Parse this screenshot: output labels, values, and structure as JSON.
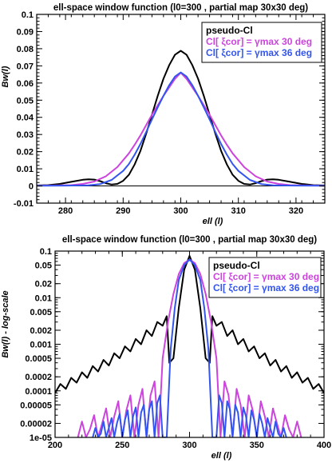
{
  "chart_data": [
    {
      "type": "line",
      "title": "ell-space window function (l0=300 , partial map 30x30 deg)",
      "xlabel": "ell  (l)",
      "ylabel": "Bw(l)",
      "xlim": [
        275,
        325
      ],
      "ylim": [
        -0.01,
        0.1
      ],
      "log_y": false,
      "grid": false,
      "legend_position": "top-right",
      "x_ticks": [
        {
          "v": 280,
          "label": "280"
        },
        {
          "v": 290,
          "label": "290"
        },
        {
          "v": 300,
          "label": "300"
        },
        {
          "v": 310,
          "label": "310"
        },
        {
          "v": 320,
          "label": "320"
        }
      ],
      "y_ticks": [
        {
          "v": -0.01,
          "label": "-0.01"
        },
        {
          "v": 0,
          "label": "0"
        },
        {
          "v": 0.01,
          "label": "0.01"
        },
        {
          "v": 0.02,
          "label": "0.02"
        },
        {
          "v": 0.03,
          "label": "0.03"
        },
        {
          "v": 0.04,
          "label": "0.04"
        },
        {
          "v": 0.05,
          "label": "0.05"
        },
        {
          "v": 0.06,
          "label": "0.06"
        },
        {
          "v": 0.07,
          "label": "0.07"
        },
        {
          "v": 0.08,
          "label": "0.08"
        },
        {
          "v": 0.09,
          "label": "0.09"
        },
        {
          "v": 0.1,
          "label": "0.1"
        }
      ],
      "legend": [
        {
          "parts": [
            {
              "text": "pseudo-Cl",
              "color": "#000000"
            }
          ]
        },
        {
          "parts": [
            {
              "text": "Cl[ ξcor] = γmax ",
              "color": "#cc44dd"
            },
            {
              "text": "30 deg",
              "color": "#cc44dd"
            }
          ]
        },
        {
          "parts": [
            {
              "text": "Cl[ ξcor] = γmax ",
              "color": "#3355ee"
            },
            {
              "text": "36 deg",
              "color": "#3355ee"
            }
          ]
        }
      ],
      "series": [
        {
          "color": "#000000",
          "x": [
            275,
            277,
            279,
            281,
            283,
            284,
            285,
            286,
            287,
            288,
            289,
            290,
            291,
            292,
            293,
            294,
            295,
            296,
            297,
            298,
            299,
            300,
            301,
            302,
            303,
            304,
            305,
            306,
            307,
            308,
            309,
            310,
            311,
            312,
            313,
            314,
            315,
            316,
            317,
            319,
            321,
            323,
            325
          ],
          "y": [
            0.0003,
            0.0005,
            0.0012,
            0.0024,
            0.0036,
            0.0039,
            0.0037,
            0.0028,
            0.0016,
            0.0008,
            0.0012,
            0.003,
            0.0065,
            0.0125,
            0.0205,
            0.0305,
            0.0415,
            0.0525,
            0.0625,
            0.0705,
            0.0765,
            0.0788,
            0.0765,
            0.0705,
            0.0625,
            0.0525,
            0.0415,
            0.0305,
            0.0205,
            0.0125,
            0.0065,
            0.003,
            0.0012,
            0.0008,
            0.0016,
            0.0028,
            0.0037,
            0.0039,
            0.0036,
            0.0024,
            0.0012,
            0.0005,
            0.0003
          ]
        },
        {
          "color": "#cc44dd",
          "x": [
            275,
            278,
            281,
            283,
            285,
            287,
            289,
            291,
            292,
            293,
            294,
            295,
            296,
            297,
            298,
            299,
            300,
            301,
            302,
            303,
            304,
            305,
            306,
            307,
            308,
            309,
            311,
            313,
            315,
            317,
            319,
            322,
            325
          ],
          "y": [
            0.0002,
            0.0003,
            0.0005,
            0.0012,
            0.0026,
            0.0056,
            0.011,
            0.019,
            0.024,
            0.0295,
            0.0355,
            0.0415,
            0.047,
            0.0525,
            0.0575,
            0.0625,
            0.066,
            0.0625,
            0.0575,
            0.0525,
            0.047,
            0.0415,
            0.0355,
            0.0295,
            0.024,
            0.019,
            0.011,
            0.0056,
            0.0026,
            0.0012,
            0.0005,
            0.0003,
            0.0002
          ]
        },
        {
          "color": "#3355ee",
          "x": [
            275,
            280,
            284,
            286,
            288,
            290,
            291,
            292,
            293,
            294,
            295,
            296,
            297,
            298,
            299,
            300,
            301,
            302,
            303,
            304,
            305,
            306,
            307,
            308,
            309,
            310,
            312,
            314,
            316,
            320,
            325
          ],
          "y": [
            0.0001,
            0.0002,
            0.0004,
            0.0011,
            0.0035,
            0.0088,
            0.0128,
            0.0182,
            0.0245,
            0.0315,
            0.0388,
            0.0458,
            0.0525,
            0.0588,
            0.0638,
            0.0662,
            0.0638,
            0.0588,
            0.0525,
            0.0458,
            0.0388,
            0.0315,
            0.0245,
            0.0182,
            0.0128,
            0.0088,
            0.0035,
            0.0011,
            0.0004,
            0.0002,
            0.0001
          ]
        }
      ]
    },
    {
      "type": "line",
      "title": "ell-space window function (l0=300 , partial map 30x30 deg)",
      "xlabel": "ell  (l)",
      "ylabel": "Bw(l)  -  log-scale",
      "xlim": [
        200,
        400
      ],
      "ylim": [
        1e-05,
        0.1
      ],
      "log_y": true,
      "grid": false,
      "legend_position": "top-right",
      "x_ticks": [
        {
          "v": 200,
          "label": "200"
        },
        {
          "v": 250,
          "label": "250"
        },
        {
          "v": 300,
          "label": "300"
        },
        {
          "v": 350,
          "label": "350"
        },
        {
          "v": 400,
          "label": "400"
        }
      ],
      "y_ticks": [
        {
          "v": 0.1,
          "label": "0.1"
        },
        {
          "v": 0.05,
          "label": "0.05"
        },
        {
          "v": 0.02,
          "label": "0.02"
        },
        {
          "v": 0.01,
          "label": "0.01"
        },
        {
          "v": 0.005,
          "label": "0.005"
        },
        {
          "v": 0.002,
          "label": "0.002"
        },
        {
          "v": 0.001,
          "label": "0.001"
        },
        {
          "v": 0.0005,
          "label": "0.0005"
        },
        {
          "v": 0.0002,
          "label": "0.0002"
        },
        {
          "v": 0.0001,
          "label": "0.0001"
        },
        {
          "v": 5e-05,
          "label": "0.00005"
        },
        {
          "v": 2e-05,
          "label": "0.00002"
        },
        {
          "v": 1e-05,
          "label": "1e-05"
        }
      ],
      "legend": [
        {
          "parts": [
            {
              "text": "pseudo-Cl",
              "color": "#000000"
            }
          ]
        },
        {
          "parts": [
            {
              "text": "Cl[ ξcor] = γmax ",
              "color": "#cc44dd"
            },
            {
              "text": "30 deg",
              "color": "#cc44dd"
            }
          ]
        },
        {
          "parts": [
            {
              "text": "Cl[ ξcor] = γmax ",
              "color": "#3355ee"
            },
            {
              "text": "36 deg",
              "color": "#3355ee"
            }
          ]
        }
      ],
      "series": [
        {
          "color": "#000000",
          "x": [
            200,
            204,
            208,
            212,
            216,
            220,
            224,
            228,
            232,
            236,
            240,
            244,
            248,
            252,
            256,
            260,
            264,
            268,
            272,
            276,
            280,
            283,
            285,
            288,
            292,
            296,
            300,
            304,
            308,
            312,
            315,
            317,
            320,
            324,
            328,
            332,
            336,
            340,
            344,
            348,
            352,
            356,
            360,
            364,
            368,
            372,
            376,
            380,
            384,
            388,
            392,
            396,
            400
          ],
          "y": [
            9e-05,
            0.00014,
            0.00011,
            0.00019,
            0.00015,
            0.00025,
            0.00019,
            0.00034,
            0.00026,
            0.00046,
            0.00035,
            0.00064,
            0.0005,
            0.0009,
            0.0007,
            0.0013,
            0.001,
            0.002,
            0.0015,
            0.003,
            0.0025,
            0.004,
            0.0004,
            0.0005,
            0.006,
            0.04,
            0.079,
            0.04,
            0.006,
            0.0005,
            0.0004,
            0.004,
            0.0025,
            0.003,
            0.0015,
            0.002,
            0.001,
            0.0013,
            0.0007,
            0.0009,
            0.0005,
            0.00064,
            0.00035,
            0.00046,
            0.00026,
            0.00034,
            0.00019,
            0.00025,
            0.00015,
            0.00019,
            0.00011,
            0.00014,
            9e-05
          ]
        },
        {
          "color": "#cc44dd",
          "x": [
            217,
            220,
            223,
            226,
            229,
            232,
            235,
            238,
            241,
            244,
            247,
            250,
            253,
            256,
            259,
            262,
            265,
            268,
            271,
            274,
            277,
            280,
            284,
            288,
            292,
            296,
            300,
            304,
            308,
            312,
            316,
            320,
            323,
            326,
            329,
            332,
            335,
            338,
            341,
            344,
            347,
            350,
            353,
            356,
            359,
            362,
            365,
            368,
            371,
            374,
            377,
            380,
            383
          ],
          "y": [
            1e-05,
            2.2e-05,
            1e-05,
            1.5e-05,
            3e-05,
            1e-05,
            2e-05,
            4.2e-05,
            1e-05,
            2.8e-05,
            6e-05,
            1e-05,
            3.8e-05,
            8e-05,
            1e-05,
            5e-05,
            0.00011,
            1e-05,
            8e-05,
            0.00016,
            1e-05,
            0.0005,
            0.003,
            0.012,
            0.032,
            0.055,
            0.066,
            0.055,
            0.032,
            0.012,
            0.003,
            0.0005,
            1e-05,
            0.00016,
            8e-05,
            1e-05,
            0.00011,
            5e-05,
            1e-05,
            8e-05,
            3.8e-05,
            1e-05,
            6e-05,
            2.8e-05,
            1e-05,
            4.2e-05,
            2e-05,
            1e-05,
            3e-05,
            1.5e-05,
            1e-05,
            2.2e-05,
            1e-05
          ]
        },
        {
          "color": "#3355ee",
          "x": [
            228,
            230,
            232,
            234,
            236,
            238,
            240,
            242,
            244,
            246,
            248,
            250,
            252,
            254,
            256,
            258,
            260,
            262,
            264,
            266,
            268,
            270,
            272,
            274,
            276,
            278,
            280,
            283,
            286,
            289,
            292,
            296,
            300,
            304,
            308,
            311,
            314,
            317,
            320,
            322,
            324,
            326,
            328,
            330,
            332,
            334,
            336,
            338,
            340,
            342,
            344,
            346,
            348,
            350,
            352,
            354,
            356,
            358,
            360,
            362,
            364,
            366,
            368,
            370,
            372
          ],
          "y": [
            1e-05,
            1.6e-05,
            1e-05,
            1.2e-05,
            2.2e-05,
            1e-05,
            1.6e-05,
            2.6e-05,
            1e-05,
            2e-05,
            3.2e-05,
            1e-05,
            2.4e-05,
            3.8e-05,
            1e-05,
            2.8e-05,
            4.4e-05,
            1e-05,
            3.4e-05,
            5e-05,
            1e-05,
            4e-05,
            6e-05,
            1e-05,
            5.5e-05,
            8e-05,
            1e-05,
            1e-05,
            0.0008,
            0.006,
            0.024,
            0.05,
            0.066,
            0.05,
            0.024,
            0.006,
            0.0008,
            1e-05,
            1e-05,
            8e-05,
            5.5e-05,
            1e-05,
            6e-05,
            4e-05,
            1e-05,
            5e-05,
            3.4e-05,
            1e-05,
            4.4e-05,
            2.8e-05,
            1e-05,
            3.8e-05,
            2.4e-05,
            1e-05,
            3.2e-05,
            2e-05,
            1e-05,
            2.6e-05,
            1.6e-05,
            1e-05,
            2.2e-05,
            1.2e-05,
            1e-05,
            1.6e-05,
            1e-05
          ]
        }
      ]
    }
  ]
}
